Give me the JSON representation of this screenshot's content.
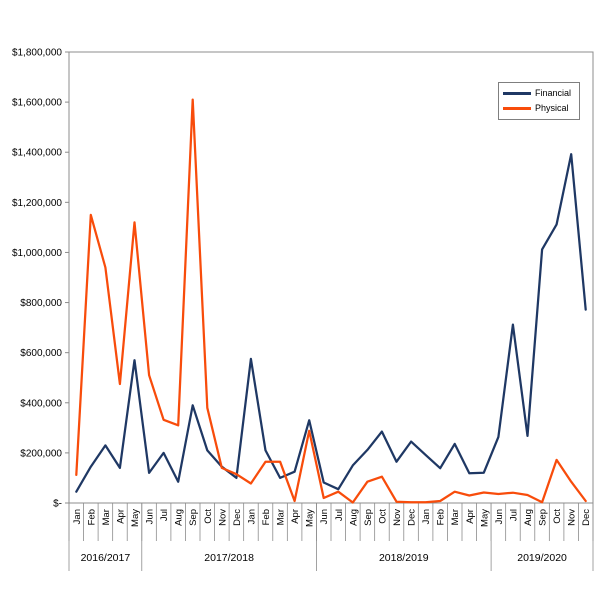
{
  "chart_data": {
    "type": "line",
    "title": "",
    "xlabel": "",
    "ylabel": "",
    "y_axis": {
      "min": 0,
      "max": 1800000,
      "tick_step": 200000,
      "tick_labels": [
        "$1,800,000",
        "$1,600,000",
        "$1,400,000",
        "$1,200,000",
        "$1,000,000",
        "$800,000",
        "$600,000",
        "$400,000",
        "$200,000",
        "$-"
      ]
    },
    "categories": [
      "Jan",
      "Feb",
      "Mar",
      "Apr",
      "May",
      "Jun",
      "Jul",
      "Aug",
      "Sep",
      "Oct",
      "Nov",
      "Dec",
      "Jan",
      "Feb",
      "Mar",
      "Apr",
      "May",
      "Jun",
      "Jul",
      "Aug",
      "Sep",
      "Oct",
      "Nov",
      "Dec",
      "Jan",
      "Feb",
      "Mar",
      "Apr",
      "May",
      "Jun",
      "Jul",
      "Aug",
      "Sep",
      "Oct",
      "Nov",
      "Dec"
    ],
    "year_groups": [
      {
        "label": "2016/2017",
        "span": 5
      },
      {
        "label": "2017/2018",
        "span": 12
      },
      {
        "label": "2018/2019",
        "span": 12
      },
      {
        "label": "2019/2020",
        "span": 7
      }
    ],
    "series": [
      {
        "name": "Financial",
        "color": "#1F3864",
        "values": [
          45000,
          145000,
          230000,
          140000,
          570000,
          120000,
          200000,
          85000,
          390000,
          210000,
          145000,
          100000,
          575000,
          210000,
          100000,
          125000,
          330000,
          82000,
          55000,
          150000,
          212000,
          285000,
          165000,
          245000,
          192000,
          139000,
          236000,
          119000,
          121000,
          264000,
          712000,
          268000,
          1012000,
          1112000,
          1392000,
          772000
        ]
      },
      {
        "name": "Physical",
        "color": "#F84C0B",
        "values": [
          112000,
          1150000,
          940000,
          475000,
          1120000,
          510000,
          332000,
          310000,
          1610000,
          380000,
          140000,
          115000,
          78000,
          165000,
          165000,
          8000,
          288000,
          20000,
          45000,
          2000,
          85000,
          105000,
          5000,
          3000,
          3000,
          8000,
          45000,
          30000,
          42000,
          36000,
          41000,
          32000,
          3000,
          172000,
          85000,
          8000
        ]
      }
    ],
    "grid": "off",
    "legend_position": "top-right",
    "axis_color": "#8c8c8c",
    "tick_text_color": "#000000"
  },
  "legend": {
    "items": [
      {
        "label": "Financial",
        "color": "#1F3864"
      },
      {
        "label": "Physical",
        "color": "#F84C0B"
      }
    ]
  }
}
